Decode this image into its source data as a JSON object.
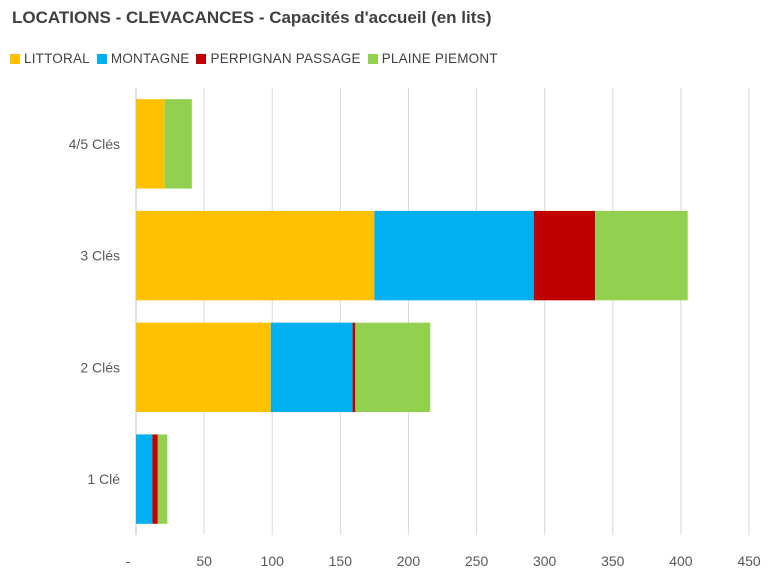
{
  "chart_data": {
    "type": "bar",
    "orientation": "horizontal",
    "stacked": true,
    "title": "LOCATIONS - CLEVACANCES  - Capacités d'accueil (en lits)",
    "categories": [
      "1 Clé",
      "2 Clés",
      "3 Clés",
      "4/5 Clés"
    ],
    "series": [
      {
        "name": "LITTORAL",
        "color": "#FFC000",
        "values": [
          0,
          99,
          175,
          21
        ]
      },
      {
        "name": "MONTAGNE",
        "color": "#00B0F0",
        "values": [
          12,
          60,
          117,
          0
        ]
      },
      {
        "name": "PERPIGNAN PASSAGE",
        "color": "#C00000",
        "values": [
          4,
          2,
          45,
          0
        ]
      },
      {
        "name": "PLAINE PIEMONT",
        "color": "#92D050",
        "values": [
          7,
          55,
          68,
          20
        ]
      }
    ],
    "xlim": [
      0,
      450
    ],
    "xticks": [
      0,
      50,
      100,
      150,
      200,
      250,
      300,
      350,
      400,
      450
    ],
    "xtick_labels": [
      "-",
      "50",
      "100",
      "150",
      "200",
      "250",
      "300",
      "350",
      "400",
      "450"
    ],
    "xlabel": "",
    "ylabel": "",
    "grid": true,
    "legend_position": "top-left"
  }
}
